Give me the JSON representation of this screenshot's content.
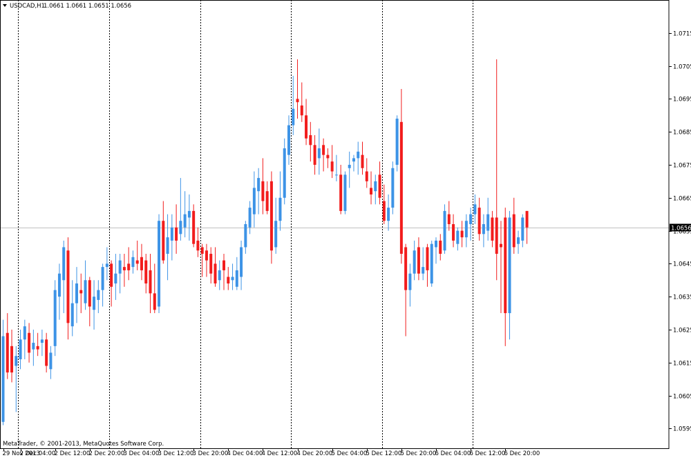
{
  "header": {
    "menu_icon": "dropdown-triangle-icon",
    "title": "USDCAD,H1",
    "values": "1.0661 1.0661 1.0651 1.0656"
  },
  "footer": {
    "copyright": "MetaTrader, © 2001-2013, MetaQuotes Software Corp."
  },
  "colors": {
    "bull": "#3d93e6",
    "bear": "#f21c1c",
    "grid": "#000000",
    "price_line": "#c0c0c0",
    "price_box_bg": "#000000",
    "price_box_text": "#ffffff"
  },
  "chart_data": {
    "type": "candlestick",
    "symbol": "USDCAD",
    "timeframe": "H1",
    "current_price": "1.0656",
    "ylim": [
      1.0589,
      1.0725
    ],
    "y_ticks": [
      "1.0715",
      "1.0705",
      "1.0695",
      "1.0685",
      "1.0675",
      "1.0665",
      "1.0655",
      "1.0645",
      "1.0635",
      "1.0625",
      "1.0615",
      "1.0605",
      "1.0595"
    ],
    "x_labels": [
      "29 Nov 2013",
      "2 Dec 04:00",
      "2 Dec 12:00",
      "2 Dec 20:00",
      "3 Dec 04:00",
      "3 Dec 12:00",
      "3 Dec 20:00",
      "4 Dec 04:00",
      "4 Dec 12:00",
      "4 Dec 20:00",
      "5 Dec 04:00",
      "5 Dec 12:00",
      "5 Dec 20:00",
      "6 Dec 04:00",
      "6 Dec 12:00",
      "6 Dec 20:00"
    ],
    "x_label_bars": [
      0,
      4,
      12,
      20,
      28,
      36,
      44,
      52,
      60,
      68,
      76,
      84,
      92,
      100,
      108,
      116
    ],
    "day_separator_bars": [
      3.5,
      24.5,
      45.5,
      66.5,
      87.5,
      108.5
    ],
    "candles": [
      {
        "o": 1.0597,
        "h": 1.0628,
        "l": 1.0596,
        "c": 1.0623
      },
      {
        "o": 1.0624,
        "h": 1.063,
        "l": 1.061,
        "c": 1.0612
      },
      {
        "o": 1.062,
        "h": 1.0625,
        "l": 1.0609,
        "c": 1.0612
      },
      {
        "o": 1.0614,
        "h": 1.062,
        "l": 1.06,
        "c": 1.0617
      },
      {
        "o": 1.0616,
        "h": 1.0625,
        "l": 1.0613,
        "c": 1.0622
      },
      {
        "o": 1.0622,
        "h": 1.0628,
        "l": 1.0616,
        "c": 1.0626
      },
      {
        "o": 1.0624,
        "h": 1.0627,
        "l": 1.0615,
        "c": 1.0618
      },
      {
        "o": 1.0619,
        "h": 1.0625,
        "l": 1.0614,
        "c": 1.0621
      },
      {
        "o": 1.062,
        "h": 1.0624,
        "l": 1.0617,
        "c": 1.0619
      },
      {
        "o": 1.0621,
        "h": 1.0625,
        "l": 1.0617,
        "c": 1.0622
      },
      {
        "o": 1.0622,
        "h": 1.0624,
        "l": 1.0612,
        "c": 1.0614
      },
      {
        "o": 1.0613,
        "h": 1.062,
        "l": 1.061,
        "c": 1.0618
      },
      {
        "o": 1.062,
        "h": 1.064,
        "l": 1.0617,
        "c": 1.0637
      },
      {
        "o": 1.0635,
        "h": 1.0645,
        "l": 1.0628,
        "c": 1.0642
      },
      {
        "o": 1.064,
        "h": 1.0652,
        "l": 1.063,
        "c": 1.065
      },
      {
        "o": 1.0649,
        "h": 1.0653,
        "l": 1.0622,
        "c": 1.0627
      },
      {
        "o": 1.0626,
        "h": 1.064,
        "l": 1.0623,
        "c": 1.0633
      },
      {
        "o": 1.0633,
        "h": 1.0644,
        "l": 1.0627,
        "c": 1.0639
      },
      {
        "o": 1.0637,
        "h": 1.0642,
        "l": 1.063,
        "c": 1.0636
      },
      {
        "o": 1.0633,
        "h": 1.0646,
        "l": 1.0631,
        "c": 1.064
      },
      {
        "o": 1.064,
        "h": 1.0641,
        "l": 1.0626,
        "c": 1.0632
      },
      {
        "o": 1.0631,
        "h": 1.064,
        "l": 1.0625,
        "c": 1.0635
      },
      {
        "o": 1.0634,
        "h": 1.064,
        "l": 1.063,
        "c": 1.0637
      },
      {
        "o": 1.0637,
        "h": 1.0645,
        "l": 1.0632,
        "c": 1.0644
      },
      {
        "o": 1.0644,
        "h": 1.065,
        "l": 1.064,
        "c": 1.0645
      },
      {
        "o": 1.0645,
        "h": 1.0646,
        "l": 1.0632,
        "c": 1.0638
      },
      {
        "o": 1.0639,
        "h": 1.0648,
        "l": 1.0634,
        "c": 1.0642
      },
      {
        "o": 1.0642,
        "h": 1.0648,
        "l": 1.0636,
        "c": 1.0646
      },
      {
        "o": 1.0644,
        "h": 1.0648,
        "l": 1.0638,
        "c": 1.0643
      },
      {
        "o": 1.0645,
        "h": 1.065,
        "l": 1.064,
        "c": 1.0643
      },
      {
        "o": 1.0644,
        "h": 1.0649,
        "l": 1.0642,
        "c": 1.0647
      },
      {
        "o": 1.0646,
        "h": 1.0652,
        "l": 1.0643,
        "c": 1.0645
      },
      {
        "o": 1.0647,
        "h": 1.0651,
        "l": 1.064,
        "c": 1.0643
      },
      {
        "o": 1.0646,
        "h": 1.0648,
        "l": 1.0636,
        "c": 1.0639
      },
      {
        "o": 1.0643,
        "h": 1.0648,
        "l": 1.063,
        "c": 1.0636
      },
      {
        "o": 1.0636,
        "h": 1.0645,
        "l": 1.063,
        "c": 1.0631
      },
      {
        "o": 1.0632,
        "h": 1.066,
        "l": 1.063,
        "c": 1.0658
      },
      {
        "o": 1.0658,
        "h": 1.0664,
        "l": 1.0645,
        "c": 1.0646
      },
      {
        "o": 1.0648,
        "h": 1.066,
        "l": 1.064,
        "c": 1.0653
      },
      {
        "o": 1.0652,
        "h": 1.066,
        "l": 1.0646,
        "c": 1.0656
      },
      {
        "o": 1.0656,
        "h": 1.0663,
        "l": 1.0648,
        "c": 1.0652
      },
      {
        "o": 1.0654,
        "h": 1.0671,
        "l": 1.0652,
        "c": 1.0658
      },
      {
        "o": 1.0656,
        "h": 1.0667,
        "l": 1.0653,
        "c": 1.066
      },
      {
        "o": 1.0659,
        "h": 1.0666,
        "l": 1.0652,
        "c": 1.0661
      },
      {
        "o": 1.0661,
        "h": 1.0663,
        "l": 1.065,
        "c": 1.0651
      },
      {
        "o": 1.0652,
        "h": 1.0656,
        "l": 1.0647,
        "c": 1.0649
      },
      {
        "o": 1.065,
        "h": 1.0651,
        "l": 1.0641,
        "c": 1.0648
      },
      {
        "o": 1.0649,
        "h": 1.0651,
        "l": 1.0641,
        "c": 1.0646
      },
      {
        "o": 1.0648,
        "h": 1.065,
        "l": 1.0639,
        "c": 1.0642
      },
      {
        "o": 1.0645,
        "h": 1.065,
        "l": 1.0638,
        "c": 1.0639
      },
      {
        "o": 1.064,
        "h": 1.0646,
        "l": 1.0637,
        "c": 1.0643
      },
      {
        "o": 1.0646,
        "h": 1.0648,
        "l": 1.0637,
        "c": 1.0643
      },
      {
        "o": 1.0641,
        "h": 1.0644,
        "l": 1.0637,
        "c": 1.0639
      },
      {
        "o": 1.064,
        "h": 1.0645,
        "l": 1.0637,
        "c": 1.0641
      },
      {
        "o": 1.0638,
        "h": 1.0647,
        "l": 1.0637,
        "c": 1.0643
      },
      {
        "o": 1.0641,
        "h": 1.0652,
        "l": 1.0637,
        "c": 1.065
      },
      {
        "o": 1.065,
        "h": 1.0658,
        "l": 1.0648,
        "c": 1.0657
      },
      {
        "o": 1.0656,
        "h": 1.0664,
        "l": 1.0654,
        "c": 1.0662
      },
      {
        "o": 1.066,
        "h": 1.0673,
        "l": 1.0656,
        "c": 1.0668
      },
      {
        "o": 1.0667,
        "h": 1.0674,
        "l": 1.066,
        "c": 1.0671
      },
      {
        "o": 1.067,
        "h": 1.0677,
        "l": 1.066,
        "c": 1.0664
      },
      {
        "o": 1.0667,
        "h": 1.067,
        "l": 1.066,
        "c": 1.0661
      },
      {
        "o": 1.067,
        "h": 1.0673,
        "l": 1.0645,
        "c": 1.0649
      },
      {
        "o": 1.065,
        "h": 1.0665,
        "l": 1.0648,
        "c": 1.0658
      },
      {
        "o": 1.0658,
        "h": 1.0673,
        "l": 1.0655,
        "c": 1.0665
      },
      {
        "o": 1.0665,
        "h": 1.0683,
        "l": 1.0663,
        "c": 1.068
      },
      {
        "o": 1.0678,
        "h": 1.069,
        "l": 1.0675,
        "c": 1.0687
      },
      {
        "o": 1.0687,
        "h": 1.0702,
        "l": 1.0684,
        "c": 1.0692
      },
      {
        "o": 1.0695,
        "h": 1.0707,
        "l": 1.0689,
        "c": 1.0694
      },
      {
        "o": 1.0693,
        "h": 1.07,
        "l": 1.0688,
        "c": 1.069
      },
      {
        "o": 1.069,
        "h": 1.0695,
        "l": 1.0681,
        "c": 1.0683
      },
      {
        "o": 1.0684,
        "h": 1.0688,
        "l": 1.0676,
        "c": 1.0681
      },
      {
        "o": 1.0681,
        "h": 1.0684,
        "l": 1.0672,
        "c": 1.0675
      },
      {
        "o": 1.0677,
        "h": 1.0686,
        "l": 1.0672,
        "c": 1.068
      },
      {
        "o": 1.0681,
        "h": 1.0683,
        "l": 1.0673,
        "c": 1.0678
      },
      {
        "o": 1.0678,
        "h": 1.068,
        "l": 1.0674,
        "c": 1.0677
      },
      {
        "o": 1.0676,
        "h": 1.0681,
        "l": 1.0671,
        "c": 1.0673
      },
      {
        "o": 1.0672,
        "h": 1.0678,
        "l": 1.067,
        "c": 1.0672
      },
      {
        "o": 1.0672,
        "h": 1.0675,
        "l": 1.066,
        "c": 1.0661
      },
      {
        "o": 1.0661,
        "h": 1.0673,
        "l": 1.066,
        "c": 1.0672
      },
      {
        "o": 1.0674,
        "h": 1.0679,
        "l": 1.0668,
        "c": 1.0675
      },
      {
        "o": 1.0676,
        "h": 1.0678,
        "l": 1.0673,
        "c": 1.0677
      },
      {
        "o": 1.0677,
        "h": 1.0682,
        "l": 1.0672,
        "c": 1.0679
      },
      {
        "o": 1.0678,
        "h": 1.0682,
        "l": 1.0672,
        "c": 1.0674
      },
      {
        "o": 1.0673,
        "h": 1.0677,
        "l": 1.0668,
        "c": 1.067
      },
      {
        "o": 1.0668,
        "h": 1.0673,
        "l": 1.0663,
        "c": 1.0666
      },
      {
        "o": 1.0667,
        "h": 1.0672,
        "l": 1.0663,
        "c": 1.067
      },
      {
        "o": 1.0672,
        "h": 1.0676,
        "l": 1.0663,
        "c": 1.0665
      },
      {
        "o": 1.0664,
        "h": 1.0669,
        "l": 1.0657,
        "c": 1.0658
      },
      {
        "o": 1.0658,
        "h": 1.0666,
        "l": 1.0655,
        "c": 1.0662
      },
      {
        "o": 1.0662,
        "h": 1.0676,
        "l": 1.066,
        "c": 1.0674
      },
      {
        "o": 1.0675,
        "h": 1.069,
        "l": 1.0673,
        "c": 1.0689
      },
      {
        "o": 1.0688,
        "h": 1.0698,
        "l": 1.0645,
        "c": 1.0648
      },
      {
        "o": 1.065,
        "h": 1.0651,
        "l": 1.0623,
        "c": 1.0637
      },
      {
        "o": 1.0637,
        "h": 1.0645,
        "l": 1.0632,
        "c": 1.0642
      },
      {
        "o": 1.0642,
        "h": 1.0652,
        "l": 1.064,
        "c": 1.0649
      },
      {
        "o": 1.065,
        "h": 1.0653,
        "l": 1.064,
        "c": 1.0642
      },
      {
        "o": 1.0642,
        "h": 1.065,
        "l": 1.064,
        "c": 1.0644
      },
      {
        "o": 1.065,
        "h": 1.0651,
        "l": 1.0638,
        "c": 1.0643
      },
      {
        "o": 1.0639,
        "h": 1.0652,
        "l": 1.0638,
        "c": 1.0651
      },
      {
        "o": 1.065,
        "h": 1.0653,
        "l": 1.0645,
        "c": 1.0652
      },
      {
        "o": 1.0652,
        "h": 1.0654,
        "l": 1.0646,
        "c": 1.0648
      },
      {
        "o": 1.0649,
        "h": 1.0663,
        "l": 1.0648,
        "c": 1.0661
      },
      {
        "o": 1.066,
        "h": 1.0664,
        "l": 1.0655,
        "c": 1.0657
      },
      {
        "o": 1.0657,
        "h": 1.066,
        "l": 1.065,
        "c": 1.0652
      },
      {
        "o": 1.0651,
        "h": 1.0656,
        "l": 1.0649,
        "c": 1.0655
      },
      {
        "o": 1.0655,
        "h": 1.0658,
        "l": 1.065,
        "c": 1.0653
      },
      {
        "o": 1.0653,
        "h": 1.066,
        "l": 1.065,
        "c": 1.0658
      },
      {
        "o": 1.0657,
        "h": 1.0662,
        "l": 1.0652,
        "c": 1.066
      },
      {
        "o": 1.066,
        "h": 1.0666,
        "l": 1.0657,
        "c": 1.0663
      },
      {
        "o": 1.0662,
        "h": 1.0665,
        "l": 1.0652,
        "c": 1.0654
      },
      {
        "o": 1.0654,
        "h": 1.066,
        "l": 1.065,
        "c": 1.0657
      },
      {
        "o": 1.0655,
        "h": 1.0665,
        "l": 1.0652,
        "c": 1.066
      },
      {
        "o": 1.0659,
        "h": 1.0661,
        "l": 1.065,
        "c": 1.0652
      },
      {
        "o": 1.0659,
        "h": 1.0707,
        "l": 1.064,
        "c": 1.0648
      },
      {
        "o": 1.0651,
        "h": 1.0658,
        "l": 1.063,
        "c": 1.065
      },
      {
        "o": 1.0659,
        "h": 1.0662,
        "l": 1.062,
        "c": 1.063
      },
      {
        "o": 1.063,
        "h": 1.0661,
        "l": 1.0622,
        "c": 1.0659
      },
      {
        "o": 1.066,
        "h": 1.0665,
        "l": 1.0648,
        "c": 1.065
      },
      {
        "o": 1.0651,
        "h": 1.0655,
        "l": 1.0648,
        "c": 1.0653
      },
      {
        "o": 1.0652,
        "h": 1.066,
        "l": 1.065,
        "c": 1.0659
      },
      {
        "o": 1.0661,
        "h": 1.0661,
        "l": 1.0651,
        "c": 1.0656
      }
    ]
  }
}
